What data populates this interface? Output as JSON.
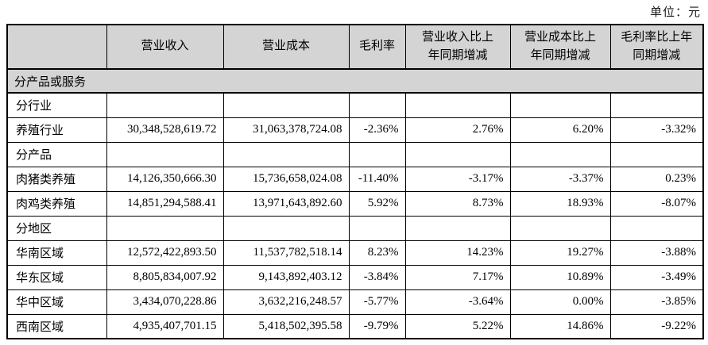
{
  "unit_label": "单位：元",
  "table": {
    "columns": [
      "",
      "营业收入",
      "营业成本",
      "毛利率",
      "营业收入比上\n年同期增减",
      "营业成本比上\n年同期增减",
      "毛利率比上年\n同期增减"
    ],
    "section_label": "分产品或服务",
    "rows": [
      {
        "label": "分行业",
        "values": [
          "",
          "",
          "",
          "",
          "",
          ""
        ]
      },
      {
        "label": "养殖行业",
        "values": [
          "30,348,528,619.72",
          "31,063,378,724.08",
          "-2.36%",
          "2.76%",
          "6.20%",
          "-3.32%"
        ]
      },
      {
        "label": "分产品",
        "values": [
          "",
          "",
          "",
          "",
          "",
          ""
        ]
      },
      {
        "label": "肉猪类养殖",
        "values": [
          "14,126,350,666.30",
          "15,736,658,024.08",
          "-11.40%",
          "-3.17%",
          "-3.37%",
          "0.23%"
        ]
      },
      {
        "label": "肉鸡类养殖",
        "values": [
          "14,851,294,588.41",
          "13,971,643,892.60",
          "5.92%",
          "8.73%",
          "18.93%",
          "-8.07%"
        ]
      },
      {
        "label": "分地区",
        "values": [
          "",
          "",
          "",
          "",
          "",
          ""
        ]
      },
      {
        "label": "华南区域",
        "values": [
          "12,572,422,893.50",
          "11,537,782,518.14",
          "8.23%",
          "14.23%",
          "19.27%",
          "-3.88%"
        ]
      },
      {
        "label": "华东区域",
        "values": [
          "8,805,834,007.92",
          "9,143,892,403.12",
          "-3.84%",
          "7.17%",
          "10.89%",
          "-3.49%"
        ]
      },
      {
        "label": "华中区域",
        "values": [
          "3,434,070,228.86",
          "3,632,216,248.57",
          "-5.77%",
          "-3.64%",
          "0.00%",
          "-3.85%"
        ]
      },
      {
        "label": "西南区域",
        "values": [
          "4,935,407,701.15",
          "5,418,502,395.58",
          "-9.79%",
          "5.22%",
          "14.86%",
          "-9.22%"
        ]
      }
    ]
  },
  "colors": {
    "header_bg": "#d4d4d4",
    "border": "#000000",
    "text": "#000000"
  }
}
